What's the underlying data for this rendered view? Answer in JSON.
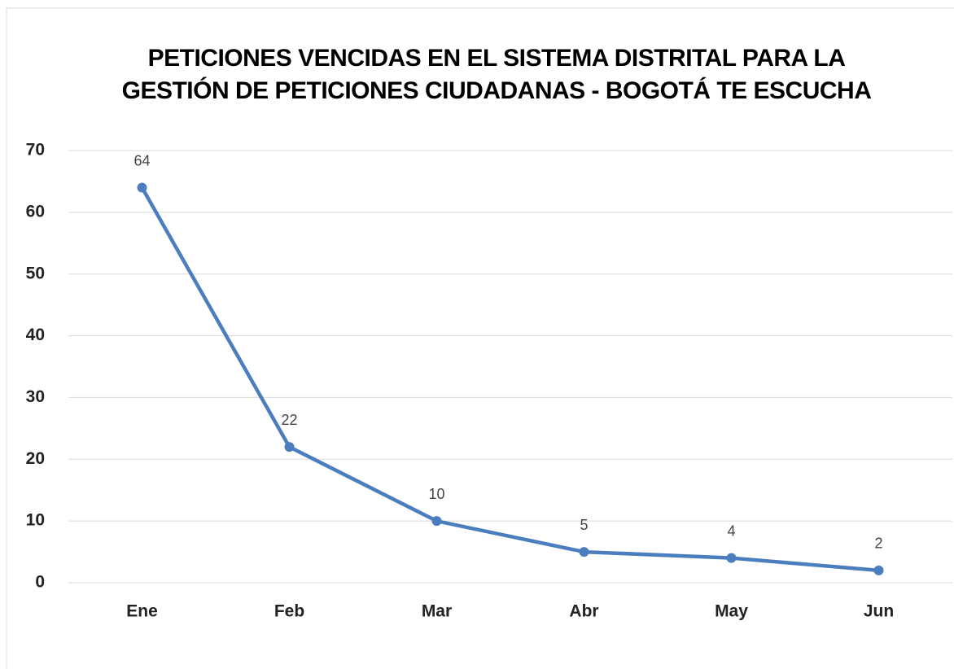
{
  "chart_data": {
    "type": "line",
    "title": "PETICIONES VENCIDAS EN EL SISTEMA DISTRITAL PARA LA GESTIÓN DE PETICIONES CIUDADANAS - BOGOTÁ TE ESCUCHA",
    "categories": [
      "Ene",
      "Feb",
      "Mar",
      "Abr",
      "May",
      "Jun"
    ],
    "series": [
      {
        "name": "Peticiones vencidas",
        "color": "#4a7ebf",
        "values": [
          64,
          22,
          10,
          5,
          4,
          2
        ]
      }
    ],
    "ylim": [
      0,
      70
    ],
    "yticks": [
      0,
      10,
      20,
      30,
      40,
      50,
      60,
      70
    ],
    "grid": true
  }
}
